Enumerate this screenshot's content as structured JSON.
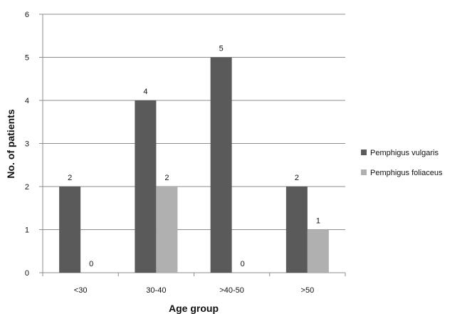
{
  "chart_data": {
    "type": "bar",
    "categories": [
      "<30",
      "30-40",
      ">40-50",
      ">50"
    ],
    "series": [
      {
        "name": "Pemphigus vulgaris",
        "values": [
          2,
          4,
          5,
          2
        ],
        "color": "#5a5a5a"
      },
      {
        "name": "Pemphigus foliaceus",
        "values": [
          0,
          2,
          0,
          1
        ],
        "color": "#b0b0b0"
      }
    ],
    "title": "",
    "xlabel": "Age group",
    "ylabel": "No. of patients",
    "ylim": [
      0,
      6
    ],
    "yticks": [
      "0",
      "1",
      "2",
      "3",
      "4",
      "5",
      "6"
    ],
    "data_labels": [
      [
        "2",
        "4",
        "5",
        "2"
      ],
      [
        "0",
        "2",
        "0",
        "1"
      ]
    ],
    "grid": true,
    "legend_position": "right"
  }
}
